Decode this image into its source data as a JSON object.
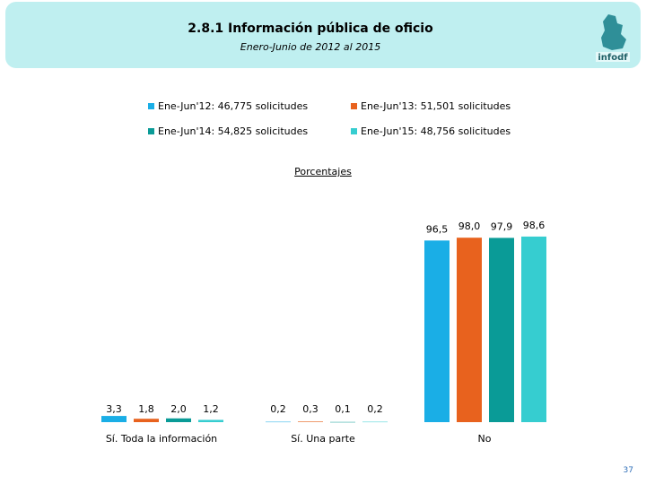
{
  "header": {
    "title": "2.8.1 Información pública de oficio",
    "subtitle": "Enero-Junio de 2012 al 2015",
    "logo_text": "infodf"
  },
  "section_title": "Porcentajes",
  "page_number": "37",
  "colors": {
    "banner": "#bfeff0",
    "series": [
      "#1aaee6",
      "#e8621e",
      "#0a9b97",
      "#36cdd0"
    ]
  },
  "chart_data": {
    "type": "bar",
    "title": "",
    "xlabel": "",
    "ylabel": "",
    "ylim": [
      0,
      100
    ],
    "grid": false,
    "legend_position": "top",
    "categories": [
      "Sí. Toda la información",
      "Sí. Una parte",
      "No"
    ],
    "series": [
      {
        "name": "Ene-Jun'12: 46,775 solicitudes",
        "values": [
          3.3,
          0.2,
          96.5
        ],
        "labels": [
          "3,3",
          "0,2",
          "96,5"
        ]
      },
      {
        "name": "Ene-Jun'13: 51,501 solicitudes",
        "values": [
          1.8,
          0.3,
          98.0
        ],
        "labels": [
          "1,8",
          "0,3",
          "98,0"
        ]
      },
      {
        "name": "Ene-Jun'14: 54,825 solicitudes",
        "values": [
          2.0,
          0.1,
          97.9
        ],
        "labels": [
          "2,0",
          "0,1",
          "97,9"
        ]
      },
      {
        "name": "Ene-Jun'15: 48,756 solicitudes",
        "values": [
          1.2,
          0.2,
          98.6
        ],
        "labels": [
          "1,2",
          "0,2",
          "98,6"
        ]
      }
    ]
  }
}
